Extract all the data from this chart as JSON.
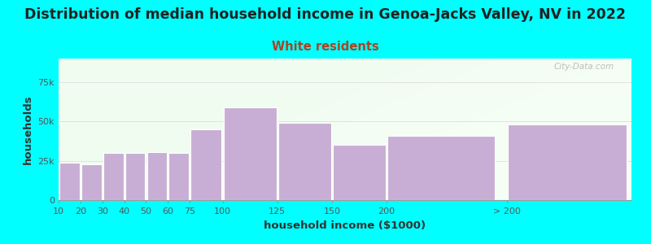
{
  "title": "Distribution of median household income in Genoa-Jacks Valley, NV in 2022",
  "subtitle": "White residents",
  "xlabel": "household income ($1000)",
  "ylabel": "households",
  "background_color": "#00FFFF",
  "bar_color": "#c8aed4",
  "bar_edge_color": "#ffffff",
  "categories": [
    "10",
    "20",
    "30",
    "40",
    "50",
    "60",
    "75",
    "100",
    "125",
    "150",
    "200",
    "> 200"
  ],
  "values": [
    24000,
    23000,
    30000,
    30000,
    30500,
    30000,
    45000,
    59000,
    49000,
    35000,
    41000,
    48000
  ],
  "bar_widths": [
    10,
    10,
    10,
    10,
    10,
    10,
    15,
    25,
    25,
    25,
    50,
    55
  ],
  "bar_lefts": [
    5,
    15,
    25,
    35,
    45,
    55,
    65,
    80,
    105,
    130,
    155,
    210
  ],
  "ylim": [
    0,
    90000
  ],
  "yticks": [
    0,
    25000,
    50000,
    75000
  ],
  "ytick_labels": [
    "0",
    "25k",
    "50k",
    "75k"
  ],
  "title_fontsize": 12.5,
  "subtitle_fontsize": 10.5,
  "subtitle_color": "#aa4422",
  "axis_label_fontsize": 9.5,
  "tick_fontsize": 8,
  "title_color": "#222222",
  "watermark": "City-Data.com"
}
